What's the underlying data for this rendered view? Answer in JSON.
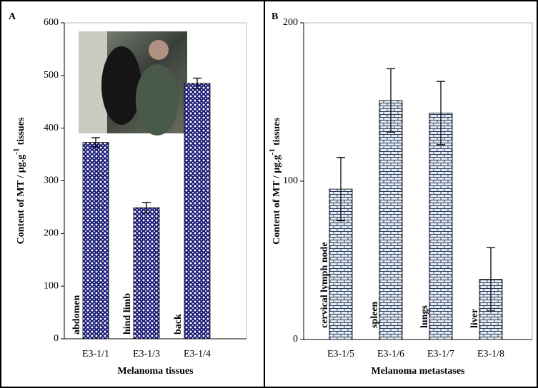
{
  "chart_data": [
    {
      "type": "bar",
      "panel": "A",
      "ylabel": {
        "text": "Content of MT / µg.g",
        "superscript": "-1",
        "suffix": "tissues"
      },
      "xlabel": "Melanoma tissues",
      "categories": [
        "E3-1/1",
        "E3-1/3",
        "E3-1/4"
      ],
      "values": [
        373,
        249,
        485
      ],
      "errors": [
        9,
        10,
        10
      ],
      "annotations": [
        "abdomen",
        "hind limb",
        "back"
      ],
      "color": "#1c1c78",
      "ylim": [
        0,
        600
      ],
      "yticks": [
        0,
        100,
        200,
        300,
        400,
        500,
        600
      ]
    },
    {
      "type": "bar",
      "panel": "B",
      "ylabel": {
        "text": "Content of MT / µg.g",
        "superscript": "-1",
        "suffix": "tissues"
      },
      "xlabel": "Melanoma metastases",
      "categories": [
        "E3-1/5",
        "E3-1/6",
        "E3-1/7",
        "E3-1/8"
      ],
      "values": [
        95,
        151,
        143,
        38
      ],
      "errors": [
        20,
        20,
        20,
        20
      ],
      "annotations": [
        "cervical lymph node",
        "spleen",
        "lungs",
        "liver"
      ],
      "color": "#2a3a5a",
      "ylim": [
        0,
        200
      ],
      "yticks": [
        0,
        100,
        200
      ]
    }
  ]
}
